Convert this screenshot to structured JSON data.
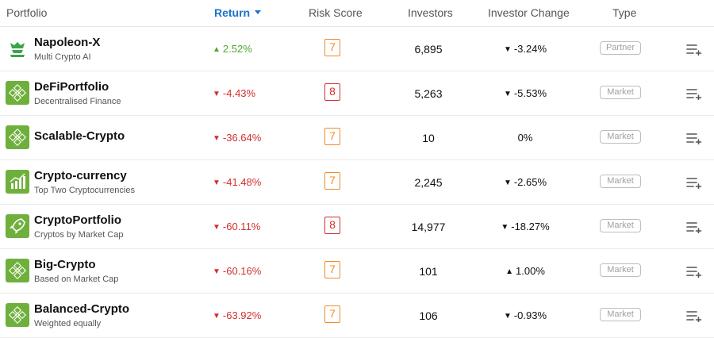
{
  "header": {
    "portfolio": "Portfolio",
    "return": "Return",
    "risk_score": "Risk Score",
    "investors": "Investors",
    "investor_change": "Investor Change",
    "type": "Type"
  },
  "accent_color": "#1a73c9",
  "rows": [
    {
      "name": "Napoleon-X",
      "desc": "Multi Crypto AI",
      "return": "2.52%",
      "return_dir": "up",
      "risk": "7",
      "investors": "6,895",
      "change": "-3.24%",
      "change_dir": "down",
      "type": "Partner",
      "icon": "napoleon-helmet-icon"
    },
    {
      "name": "DeFiPortfolio",
      "desc": "Decentralised Finance",
      "return": "-4.43%",
      "return_dir": "down",
      "risk": "8",
      "investors": "5,263",
      "change": "-5.53%",
      "change_dir": "down",
      "type": "Market",
      "icon": "network-cubes-icon"
    },
    {
      "name": "Scalable-Crypto",
      "desc": "",
      "return": "-36.64%",
      "return_dir": "down",
      "risk": "7",
      "investors": "10",
      "change": "0%",
      "change_dir": "none",
      "type": "Market",
      "icon": "network-cubes-icon"
    },
    {
      "name": "Crypto-currency",
      "desc": "Top Two Cryptocurrencies",
      "return": "-41.48%",
      "return_dir": "down",
      "risk": "7",
      "investors": "2,245",
      "change": "-2.65%",
      "change_dir": "down",
      "type": "Market",
      "icon": "bar-chart-icon"
    },
    {
      "name": "CryptoPortfolio",
      "desc": "Cryptos by Market Cap",
      "return": "-60.11%",
      "return_dir": "down",
      "risk": "8",
      "investors": "14,977",
      "change": "-18.27%",
      "change_dir": "down",
      "type": "Market",
      "icon": "rocket-icon"
    },
    {
      "name": "Big-Crypto",
      "desc": "Based on Market Cap",
      "return": "-60.16%",
      "return_dir": "down",
      "risk": "7",
      "investors": "101",
      "change": "1.00%",
      "change_dir": "up",
      "type": "Market",
      "icon": "network-cubes-icon"
    },
    {
      "name": "Balanced-Crypto",
      "desc": "Weighted equally",
      "return": "-63.92%",
      "return_dir": "down",
      "risk": "7",
      "investors": "106",
      "change": "-0.93%",
      "change_dir": "down",
      "type": "Market",
      "icon": "network-cubes-icon"
    }
  ]
}
